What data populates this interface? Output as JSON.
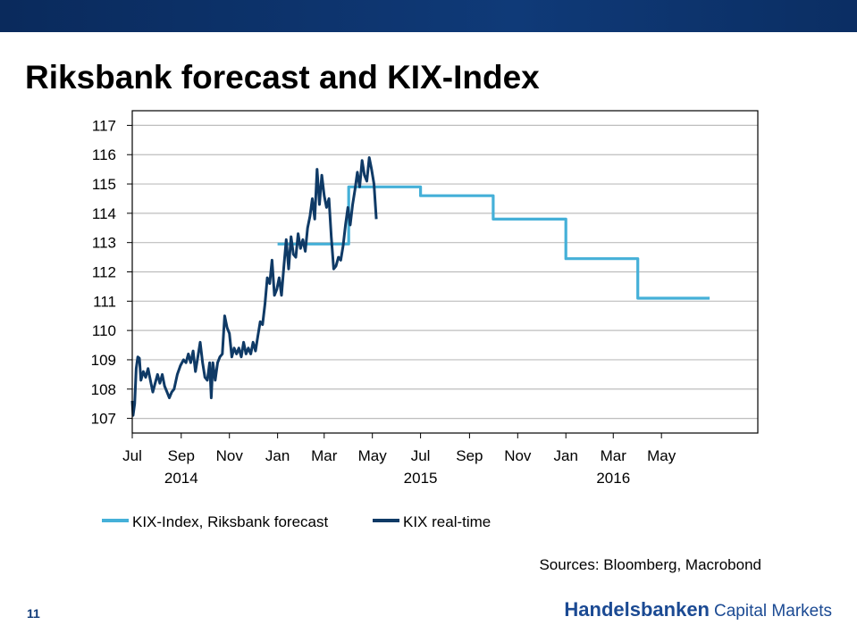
{
  "slide": {
    "title": "Riksbank forecast and KIX-Index",
    "sources": "Sources: Bloomberg, Macrobond",
    "page_number": "11",
    "logo_brand": "Handelsbanken",
    "logo_sub": "Capital Markets",
    "band_color": "#0f3a78"
  },
  "chart_data": {
    "type": "line",
    "title": "",
    "xlabel": "",
    "ylabel": "",
    "ylim": [
      106.5,
      117.5
    ],
    "y_ticks": [
      107,
      108,
      109,
      110,
      111,
      112,
      113,
      114,
      115,
      116,
      117
    ],
    "x_range": [
      "2014-07-01",
      "2016-08-31"
    ],
    "x_tick_labels": [
      {
        "date": "2014-07-01",
        "label": "Jul"
      },
      {
        "date": "2014-09-01",
        "label": "Sep"
      },
      {
        "date": "2014-11-01",
        "label": "Nov"
      },
      {
        "date": "2015-01-01",
        "label": "Jan"
      },
      {
        "date": "2015-03-01",
        "label": "Mar"
      },
      {
        "date": "2015-05-01",
        "label": "May"
      },
      {
        "date": "2015-07-01",
        "label": "Jul"
      },
      {
        "date": "2015-09-01",
        "label": "Sep"
      },
      {
        "date": "2015-11-01",
        "label": "Nov"
      },
      {
        "date": "2016-01-01",
        "label": "Jan"
      },
      {
        "date": "2016-03-01",
        "label": "Mar"
      },
      {
        "date": "2016-05-01",
        "label": "May"
      }
    ],
    "year_labels": [
      {
        "date": "2014-09-01",
        "label": "2014"
      },
      {
        "date": "2015-07-01",
        "label": "2015"
      },
      {
        "date": "2016-03-01",
        "label": "2016"
      }
    ],
    "grid": true,
    "legend_position": "bottom-left",
    "series": [
      {
        "name": "KIX-Index, Riksbank forecast",
        "color": "#45b0d8",
        "step": true,
        "points": [
          [
            "2015-01-01",
            112.95
          ],
          [
            "2015-04-01",
            112.95
          ],
          [
            "2015-04-01",
            114.9
          ],
          [
            "2015-07-01",
            114.9
          ],
          [
            "2015-07-01",
            114.6
          ],
          [
            "2015-10-01",
            114.6
          ],
          [
            "2015-10-01",
            113.8
          ],
          [
            "2016-01-01",
            113.8
          ],
          [
            "2016-01-01",
            112.45
          ],
          [
            "2016-04-01",
            112.45
          ],
          [
            "2016-04-01",
            111.1
          ],
          [
            "2016-07-01",
            111.1
          ]
        ]
      },
      {
        "name": "KIX real-time",
        "color": "#0f3a66",
        "points": [
          [
            "2014-07-01",
            107.6
          ],
          [
            "2014-07-02",
            107.1
          ],
          [
            "2014-07-04",
            107.5
          ],
          [
            "2014-07-06",
            108.7
          ],
          [
            "2014-07-08",
            109.1
          ],
          [
            "2014-07-10",
            109.05
          ],
          [
            "2014-07-12",
            108.3
          ],
          [
            "2014-07-15",
            108.6
          ],
          [
            "2014-07-18",
            108.4
          ],
          [
            "2014-07-21",
            108.7
          ],
          [
            "2014-07-24",
            108.3
          ],
          [
            "2014-07-27",
            107.9
          ],
          [
            "2014-07-30",
            108.2
          ],
          [
            "2014-08-02",
            108.5
          ],
          [
            "2014-08-05",
            108.2
          ],
          [
            "2014-08-08",
            108.5
          ],
          [
            "2014-08-11",
            108.1
          ],
          [
            "2014-08-14",
            107.9
          ],
          [
            "2014-08-17",
            107.7
          ],
          [
            "2014-08-20",
            107.9
          ],
          [
            "2014-08-23",
            108.0
          ],
          [
            "2014-08-27",
            108.5
          ],
          [
            "2014-08-31",
            108.8
          ],
          [
            "2014-09-04",
            109.0
          ],
          [
            "2014-09-07",
            108.9
          ],
          [
            "2014-09-10",
            109.2
          ],
          [
            "2014-09-13",
            108.9
          ],
          [
            "2014-09-16",
            109.3
          ],
          [
            "2014-09-19",
            108.6
          ],
          [
            "2014-09-22",
            109.1
          ],
          [
            "2014-09-25",
            109.6
          ],
          [
            "2014-09-28",
            108.9
          ],
          [
            "2014-10-01",
            108.4
          ],
          [
            "2014-10-04",
            108.3
          ],
          [
            "2014-10-07",
            108.9
          ],
          [
            "2014-10-09",
            107.7
          ],
          [
            "2014-10-11",
            108.9
          ],
          [
            "2014-10-14",
            108.3
          ],
          [
            "2014-10-17",
            108.9
          ],
          [
            "2014-10-20",
            109.1
          ],
          [
            "2014-10-23",
            109.2
          ],
          [
            "2014-10-26",
            110.5
          ],
          [
            "2014-10-29",
            110.1
          ],
          [
            "2014-11-01",
            109.9
          ],
          [
            "2014-11-04",
            109.1
          ],
          [
            "2014-11-07",
            109.4
          ],
          [
            "2014-11-10",
            109.2
          ],
          [
            "2014-11-13",
            109.4
          ],
          [
            "2014-11-16",
            109.1
          ],
          [
            "2014-11-19",
            109.6
          ],
          [
            "2014-11-22",
            109.2
          ],
          [
            "2014-11-25",
            109.4
          ],
          [
            "2014-11-28",
            109.2
          ],
          [
            "2014-12-01",
            109.6
          ],
          [
            "2014-12-04",
            109.3
          ],
          [
            "2014-12-07",
            109.8
          ],
          [
            "2014-12-10",
            110.3
          ],
          [
            "2014-12-13",
            110.2
          ],
          [
            "2014-12-16",
            110.9
          ],
          [
            "2014-12-19",
            111.8
          ],
          [
            "2014-12-22",
            111.6
          ],
          [
            "2014-12-25",
            112.4
          ],
          [
            "2014-12-28",
            111.2
          ],
          [
            "2014-12-31",
            111.4
          ],
          [
            "2015-01-03",
            111.8
          ],
          [
            "2015-01-06",
            111.2
          ],
          [
            "2015-01-09",
            112.2
          ],
          [
            "2015-01-12",
            113.1
          ],
          [
            "2015-01-15",
            112.1
          ],
          [
            "2015-01-18",
            113.2
          ],
          [
            "2015-01-21",
            112.6
          ],
          [
            "2015-01-24",
            112.5
          ],
          [
            "2015-01-27",
            113.3
          ],
          [
            "2015-01-30",
            112.8
          ],
          [
            "2015-02-02",
            113.1
          ],
          [
            "2015-02-05",
            112.7
          ],
          [
            "2015-02-08",
            113.5
          ],
          [
            "2015-02-11",
            113.9
          ],
          [
            "2015-02-14",
            114.5
          ],
          [
            "2015-02-17",
            113.8
          ],
          [
            "2015-02-20",
            115.5
          ],
          [
            "2015-02-23",
            114.3
          ],
          [
            "2015-02-26",
            115.3
          ],
          [
            "2015-03-01",
            114.6
          ],
          [
            "2015-03-04",
            114.2
          ],
          [
            "2015-03-07",
            114.5
          ],
          [
            "2015-03-10",
            113.2
          ],
          [
            "2015-03-13",
            112.1
          ],
          [
            "2015-03-16",
            112.2
          ],
          [
            "2015-03-19",
            112.5
          ],
          [
            "2015-03-22",
            112.4
          ],
          [
            "2015-03-25",
            112.9
          ],
          [
            "2015-03-28",
            113.6
          ],
          [
            "2015-03-31",
            114.2
          ],
          [
            "2015-04-03",
            113.6
          ],
          [
            "2015-04-06",
            114.3
          ],
          [
            "2015-04-09",
            114.8
          ],
          [
            "2015-04-12",
            115.4
          ],
          [
            "2015-04-15",
            114.9
          ],
          [
            "2015-04-18",
            115.8
          ],
          [
            "2015-04-21",
            115.3
          ],
          [
            "2015-04-24",
            115.1
          ],
          [
            "2015-04-27",
            115.9
          ],
          [
            "2015-04-30",
            115.5
          ],
          [
            "2015-05-03",
            115.0
          ],
          [
            "2015-05-06",
            113.8
          ]
        ]
      }
    ]
  }
}
